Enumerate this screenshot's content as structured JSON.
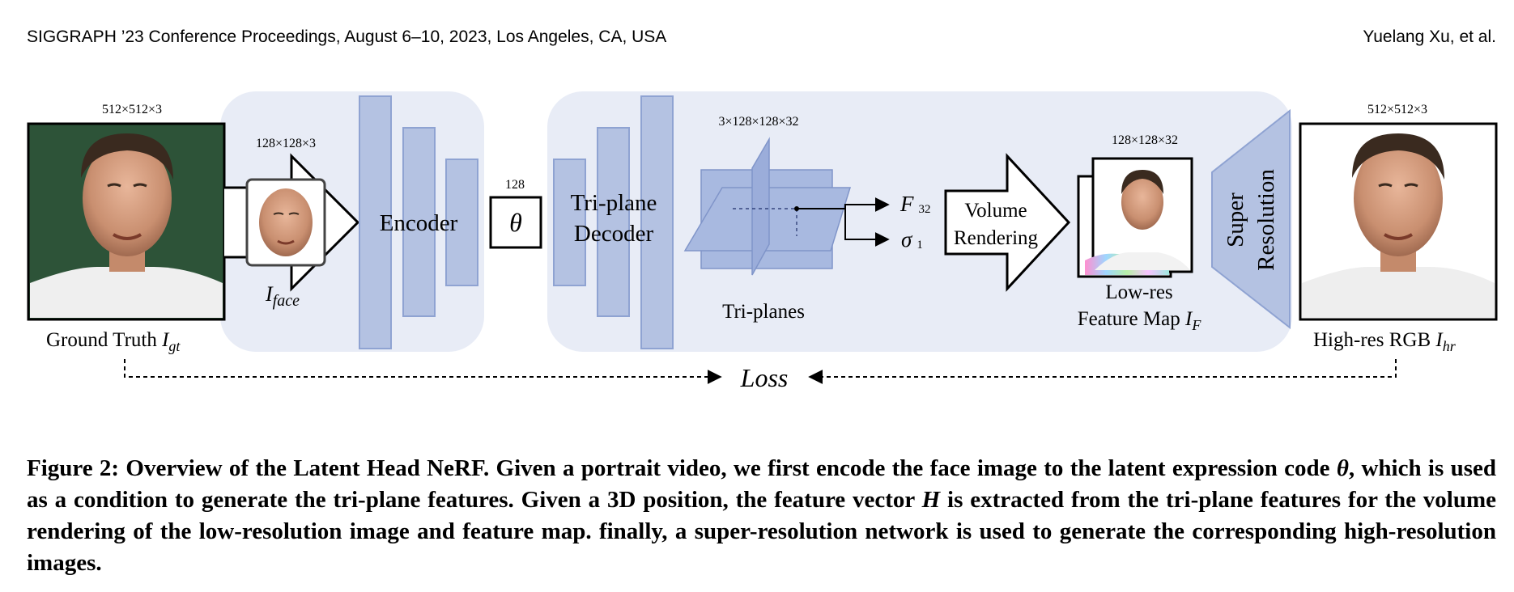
{
  "header": {
    "left": "SIGGRAPH ’23 Conference Proceedings, August 6–10, 2023, Los Angeles, CA, USA",
    "right": "Yuelang Xu, et al."
  },
  "figure": {
    "ground_truth": {
      "dims": "512×512×3",
      "label": "Ground Truth ",
      "symbol": "I",
      "subscript": "gt"
    },
    "face_crop": {
      "dims": "128×128×3",
      "symbol": "I",
      "subscript": "face"
    },
    "encoder": {
      "label": "Encoder"
    },
    "latent": {
      "dims": "128",
      "symbol": "θ"
    },
    "decoder": {
      "line1": "Tri-plane",
      "line2": "Decoder"
    },
    "triplanes": {
      "dims": "3×128×128×32",
      "label": "Tri-planes"
    },
    "outputs": {
      "f_symbol": "F",
      "f_sub": "32",
      "sigma_symbol": "σ",
      "sigma_sub": "1"
    },
    "volume_rendering": {
      "line1": "Volume",
      "line2": "Rendering"
    },
    "feature_map": {
      "dims": "128×128×32",
      "line1": "Low-res",
      "line2": "Feature Map ",
      "symbol": "I",
      "subscript": "F"
    },
    "super_resolution": {
      "line1": "Super",
      "line2": "Resolution"
    },
    "high_res": {
      "dims": "512×512×3",
      "label": "High-res RGB ",
      "symbol": "I",
      "subscript": "hr"
    },
    "loss": {
      "label": "Loss"
    }
  },
  "caption": {
    "lead": "Figure 2: Overview of the Latent Head NeRF. Given a portrait video, we first encode the face image to the latent expression code ",
    "theta": "θ",
    "mid": ", which is used as a condition to generate the tri-plane features. Given a 3D position, the feature vector ",
    "H": "H",
    "tail": " is extracted from the tri-plane features for the volume rendering of the low-resolution image and feature map. finally, a super-resolution network is used to generate the corresponding high-resolution images."
  },
  "colors": {
    "panel": "#e8ecf6",
    "block": "#b4c2e2",
    "block_stroke": "#8fa3d2",
    "plane": "#9eb1dd"
  }
}
